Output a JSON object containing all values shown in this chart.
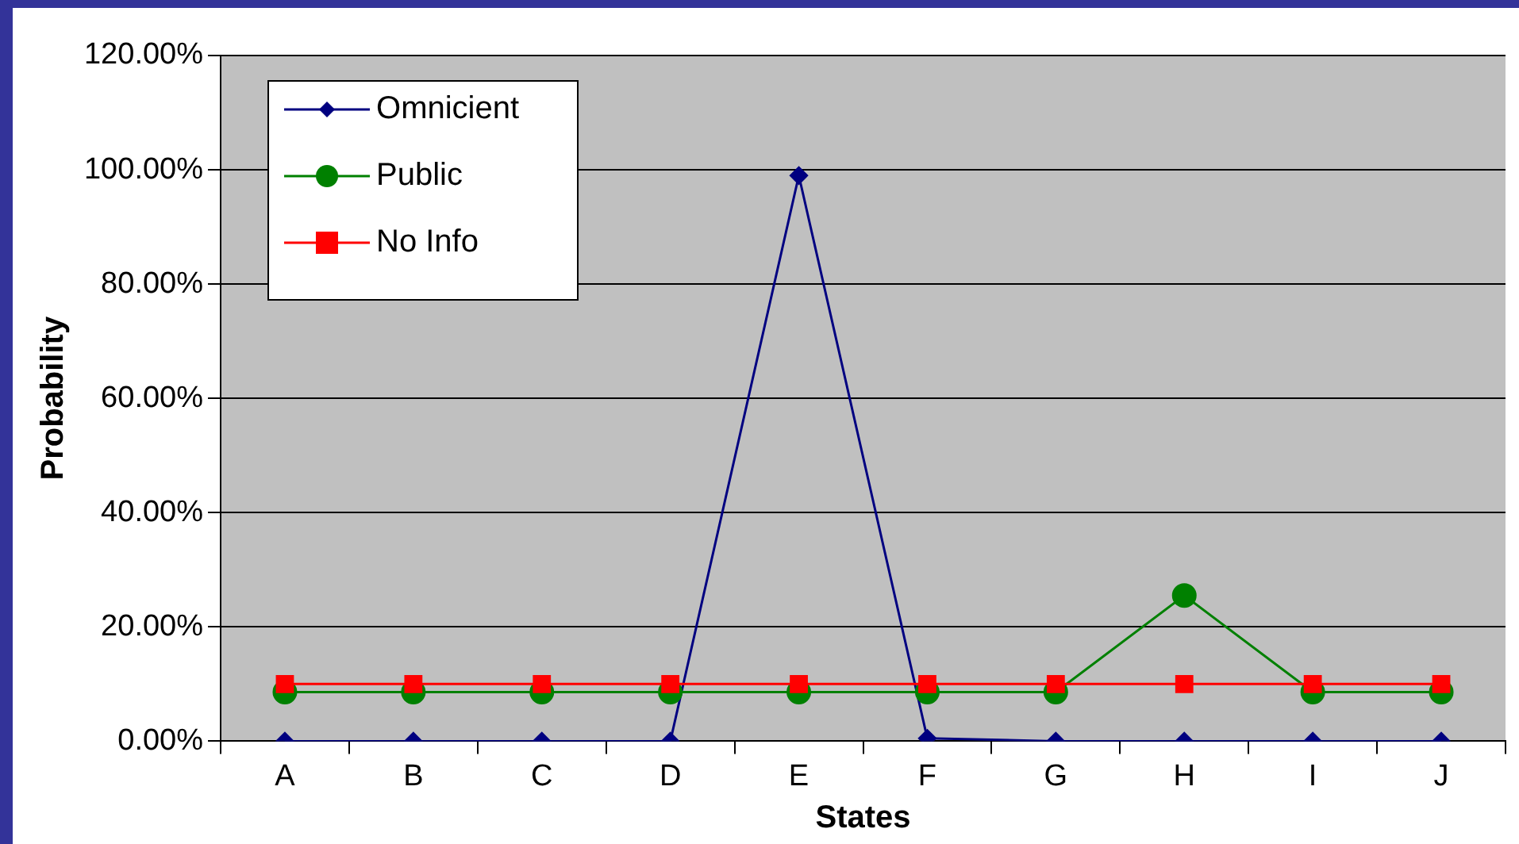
{
  "chart_data": {
    "type": "line",
    "xlabel": "States",
    "ylabel": "Probability",
    "categories": [
      "A",
      "B",
      "C",
      "D",
      "E",
      "F",
      "G",
      "H",
      "I",
      "J"
    ],
    "series": [
      {
        "name": "Omnicient",
        "color": "#000080",
        "marker": "diamond",
        "values": [
          0,
          0,
          0,
          0,
          99,
          0.5,
          0,
          0,
          0,
          0
        ]
      },
      {
        "name": "Public",
        "color": "#008000",
        "marker": "circle",
        "values": [
          8.6,
          8.6,
          8.6,
          8.6,
          8.6,
          8.6,
          8.6,
          25.5,
          8.6,
          8.6
        ]
      },
      {
        "name": "No Info",
        "color": "#ff0000",
        "marker": "square",
        "values": [
          10,
          10,
          10,
          10,
          10,
          10,
          10,
          10,
          10,
          10
        ]
      }
    ],
    "ylim": [
      0,
      120
    ],
    "yticks": [
      {
        "value": 0,
        "label": "0.00%"
      },
      {
        "value": 20,
        "label": "20.00%"
      },
      {
        "value": 40,
        "label": "40.00%"
      },
      {
        "value": 60,
        "label": "60.00%"
      },
      {
        "value": 80,
        "label": "80.00%"
      },
      {
        "value": 100,
        "label": "100.00%"
      },
      {
        "value": 120,
        "label": "120.00%"
      }
    ],
    "grid": "y",
    "legend": "top left"
  }
}
